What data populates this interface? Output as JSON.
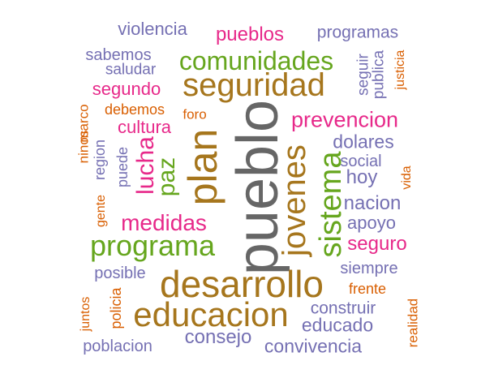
{
  "colors": {
    "purple": "#7570b3",
    "magenta": "#e7298a",
    "green": "#66a61e",
    "gold": "#a6761d",
    "gray": "#666666",
    "orange": "#d95f02"
  },
  "words": [
    {
      "text": "violencia",
      "color": "purple"
    },
    {
      "text": "pueblos",
      "color": "magenta"
    },
    {
      "text": "programas",
      "color": "purple"
    },
    {
      "text": "sabemos",
      "color": "purple"
    },
    {
      "text": "comunidades",
      "color": "green"
    },
    {
      "text": "saludar",
      "color": "purple"
    },
    {
      "text": "seguir",
      "color": "purple"
    },
    {
      "text": "publica",
      "color": "purple"
    },
    {
      "text": "justicia",
      "color": "orange"
    },
    {
      "text": "segundo",
      "color": "magenta"
    },
    {
      "text": "seguridad",
      "color": "gold"
    },
    {
      "text": "debemos",
      "color": "orange"
    },
    {
      "text": "foro",
      "color": "orange"
    },
    {
      "text": "prevencion",
      "color": "magenta"
    },
    {
      "text": "ninos",
      "color": "orange"
    },
    {
      "text": "marco",
      "color": "orange"
    },
    {
      "text": "cultura",
      "color": "magenta"
    },
    {
      "text": "region",
      "color": "purple"
    },
    {
      "text": "puede",
      "color": "purple"
    },
    {
      "text": "lucha",
      "color": "magenta"
    },
    {
      "text": "paz",
      "color": "green"
    },
    {
      "text": "plan",
      "color": "gold"
    },
    {
      "text": "pueblo",
      "color": "gray"
    },
    {
      "text": "jovenes",
      "color": "gold"
    },
    {
      "text": "sistema",
      "color": "green"
    },
    {
      "text": "dolares",
      "color": "purple"
    },
    {
      "text": "social",
      "color": "purple"
    },
    {
      "text": "hoy",
      "color": "purple"
    },
    {
      "text": "vida",
      "color": "orange"
    },
    {
      "text": "nacion",
      "color": "purple"
    },
    {
      "text": "gente",
      "color": "orange"
    },
    {
      "text": "medidas",
      "color": "magenta"
    },
    {
      "text": "apoyo",
      "color": "purple"
    },
    {
      "text": "programa",
      "color": "green"
    },
    {
      "text": "seguro",
      "color": "magenta"
    },
    {
      "text": "posible",
      "color": "purple"
    },
    {
      "text": "desarrollo",
      "color": "gold"
    },
    {
      "text": "siempre",
      "color": "purple"
    },
    {
      "text": "frente",
      "color": "orange"
    },
    {
      "text": "juntos",
      "color": "orange"
    },
    {
      "text": "policia",
      "color": "orange"
    },
    {
      "text": "educacion",
      "color": "gold"
    },
    {
      "text": "construir",
      "color": "purple"
    },
    {
      "text": "realidad",
      "color": "orange"
    },
    {
      "text": "educado",
      "color": "purple"
    },
    {
      "text": "consejo",
      "color": "purple"
    },
    {
      "text": "poblacion",
      "color": "purple"
    },
    {
      "text": "convivencia",
      "color": "purple"
    }
  ]
}
